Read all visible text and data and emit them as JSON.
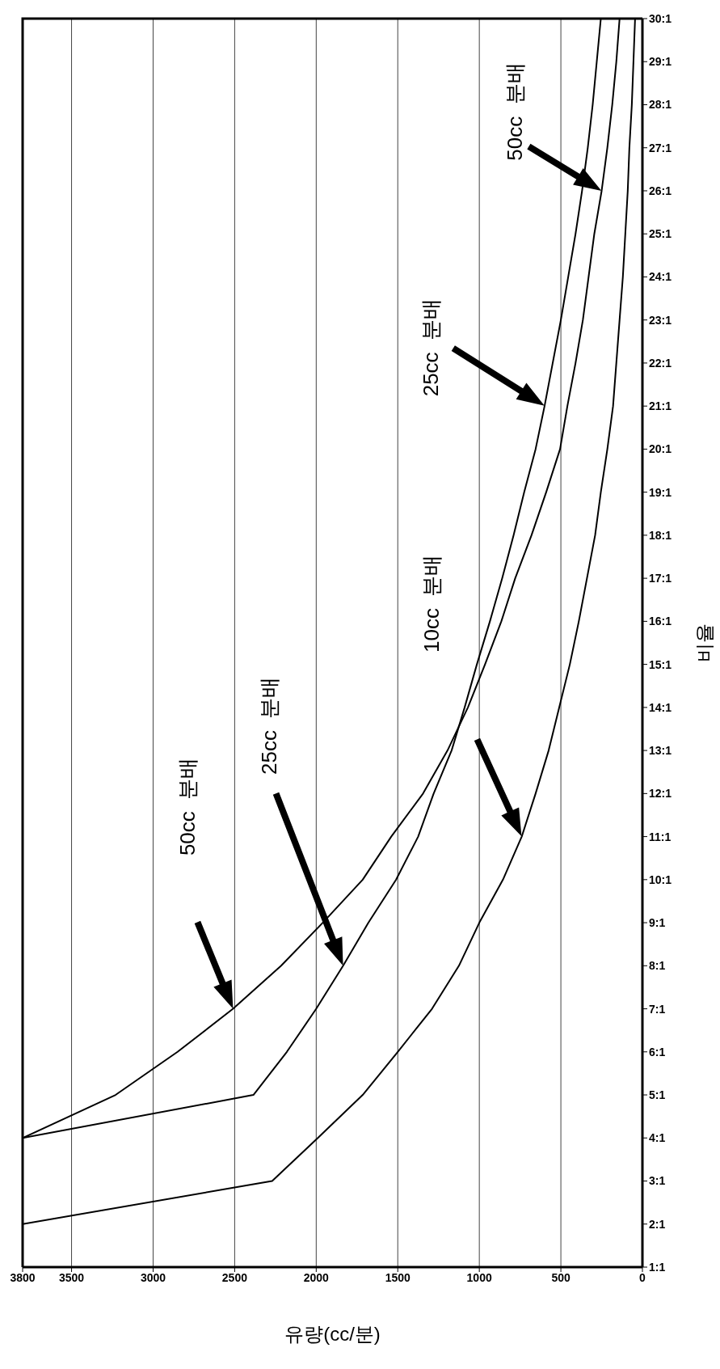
{
  "chart_data": {
    "type": "line",
    "orientation": "horizontal",
    "xlabel": "유량(cc/분)",
    "ylabel": "비율",
    "categories": [
      "30:1",
      "29:1",
      "28:1",
      "27:1",
      "26:1",
      "25:1",
      "24:1",
      "23:1",
      "22:1",
      "21:1",
      "20:1",
      "19:1",
      "18:1",
      "17:1",
      "16:1",
      "15:1",
      "14:1",
      "13:1",
      "12:1",
      "11:1",
      "10:1",
      "9:1",
      "8:1",
      "7:1",
      "6:1",
      "5:1",
      "4:1",
      "3:1",
      "2:1",
      "1:1"
    ],
    "series": [
      {
        "color": "#000000",
        "values": [
          45,
          55,
          65,
          80,
          90,
          105,
          120,
          140,
          160,
          180,
          215,
          255,
          290,
          340,
          390,
          445,
          510,
          575,
          655,
          740,
          855,
          1000,
          1125,
          1290,
          1500,
          1715,
          1990,
          2270,
          3800,
          null
        ]
      },
      {
        "color": "#000000",
        "values": [
          255,
          280,
          305,
          335,
          370,
          410,
          455,
          500,
          550,
          600,
          655,
          725,
          790,
          860,
          935,
          1015,
          1090,
          1170,
          1280,
          1375,
          1510,
          1680,
          1835,
          2000,
          2180,
          2385,
          3800,
          3800,
          3800,
          3800
        ]
      },
      {
        "color": "#000000",
        "values": [
          140,
          160,
          185,
          215,
          250,
          295,
          330,
          365,
          410,
          460,
          505,
          590,
          680,
          780,
          865,
          965,
          1070,
          1195,
          1345,
          1540,
          1715,
          1960,
          2215,
          2510,
          2850,
          3230,
          3800,
          3800,
          3800,
          3800
        ]
      }
    ],
    "xlim": [
      3800,
      0
    ],
    "xticks": [
      3800,
      3500,
      3000,
      2500,
      2000,
      1500,
      1000,
      500,
      0
    ],
    "grid": "x",
    "marker": "none",
    "line_style": "solid",
    "annotations": [
      "50cc  분배",
      "25cc  분배",
      "10cc  분배",
      "25cc  분배",
      "50cc  분배"
    ]
  }
}
